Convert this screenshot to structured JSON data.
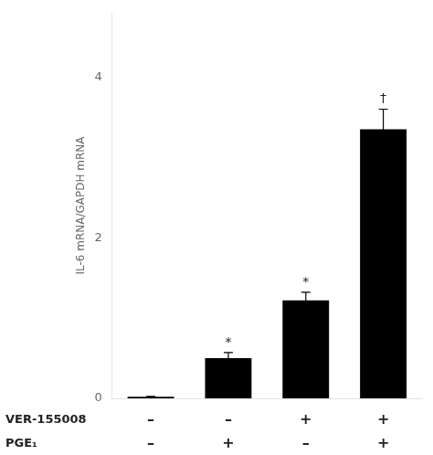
{
  "chart_data": {
    "type": "bar",
    "ylabel": "IL-6 mRNA/GAPDH mRNA",
    "categories": [
      [
        "–",
        "–"
      ],
      [
        "–",
        "+"
      ],
      [
        "+",
        "–"
      ],
      [
        "+",
        "+"
      ]
    ],
    "row_labels": [
      "VER-155008",
      "PGE₁"
    ],
    "values": [
      0.02,
      0.5,
      1.22,
      3.35
    ],
    "errors": [
      0.005,
      0.07,
      0.1,
      0.25
    ],
    "annotations": [
      {
        "bar": 1,
        "text": "*"
      },
      {
        "bar": 2,
        "text": "*"
      },
      {
        "bar": 3,
        "text": "†"
      }
    ],
    "color": "#000000",
    "ylim": [
      0,
      4.8
    ],
    "yticks": [
      0,
      2,
      4
    ],
    "grid": false
  }
}
